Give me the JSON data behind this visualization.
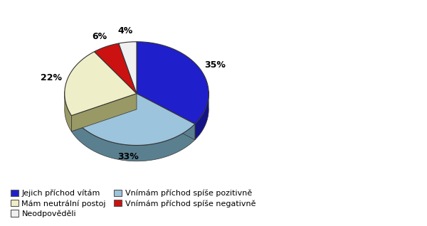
{
  "labels": [
    "Jejich příchod vítám",
    "Vnímám příchod spíše pozitivně",
    "Mám neutrální postoj",
    "Vnímám příchod spíše negativně",
    "Neodpověděli"
  ],
  "values": [
    35,
    33,
    22,
    6,
    4
  ],
  "colors": [
    "#1F1FCC",
    "#9CC4DC",
    "#EEEEC8",
    "#CC1111",
    "#F0F0F0"
  ],
  "dark_colors": [
    "#141488",
    "#5A8090",
    "#999966",
    "#881111",
    "#AAAAAA"
  ],
  "pct_labels": [
    "35%",
    "33%",
    "22%",
    "6%",
    "4%"
  ],
  "background_color": "#FFFFFF",
  "startangle": 90
}
